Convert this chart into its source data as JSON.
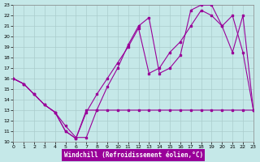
{
  "xlabel": "Windchill (Refroidissement éolien,°C)",
  "bg_color": "#c5e8e8",
  "grid_color": "#aacccc",
  "line_color": "#990099",
  "xlim": [
    0,
    23
  ],
  "ylim": [
    10,
    23
  ],
  "xticks": [
    0,
    1,
    2,
    3,
    4,
    5,
    6,
    7,
    8,
    9,
    10,
    11,
    12,
    13,
    14,
    15,
    16,
    17,
    18,
    19,
    20,
    21,
    22,
    23
  ],
  "yticks": [
    10,
    11,
    12,
    13,
    14,
    15,
    16,
    17,
    18,
    19,
    20,
    21,
    22,
    23
  ],
  "line1_x": [
    0,
    1,
    2,
    3,
    4,
    5,
    6,
    7,
    8,
    9,
    10,
    11,
    12,
    13,
    14,
    15,
    16,
    17,
    18,
    19,
    20,
    21,
    22,
    23
  ],
  "line1_y": [
    16.0,
    15.5,
    14.5,
    13.5,
    12.8,
    11.0,
    10.3,
    13.0,
    13.0,
    13.0,
    13.0,
    13.0,
    13.0,
    13.0,
    13.0,
    13.0,
    13.0,
    13.0,
    13.0,
    13.0,
    13.0,
    13.0,
    13.0,
    13.0
  ],
  "line2_x": [
    0,
    1,
    2,
    3,
    4,
    5,
    6,
    7,
    8,
    9,
    10,
    11,
    12,
    13,
    14,
    15,
    16,
    17,
    18,
    19,
    20,
    21,
    22,
    23
  ],
  "line2_y": [
    16.0,
    15.5,
    14.5,
    13.5,
    12.8,
    11.0,
    10.3,
    12.8,
    14.5,
    16.0,
    17.5,
    19.0,
    20.8,
    16.5,
    17.0,
    18.5,
    19.5,
    21.0,
    22.5,
    22.0,
    21.0,
    22.0,
    18.5,
    13.0
  ],
  "line3_x": [
    0,
    1,
    2,
    3,
    4,
    5,
    6,
    7,
    8,
    9,
    10,
    11,
    12,
    13,
    14,
    15,
    16,
    17,
    18,
    19,
    20,
    21,
    22,
    23
  ],
  "line3_y": [
    16.0,
    15.5,
    14.5,
    13.5,
    12.8,
    11.5,
    10.4,
    10.4,
    13.0,
    15.2,
    17.0,
    19.2,
    21.0,
    21.8,
    16.5,
    17.0,
    18.2,
    22.5,
    23.0,
    23.0,
    21.0,
    18.5,
    22.0,
    13.0
  ]
}
